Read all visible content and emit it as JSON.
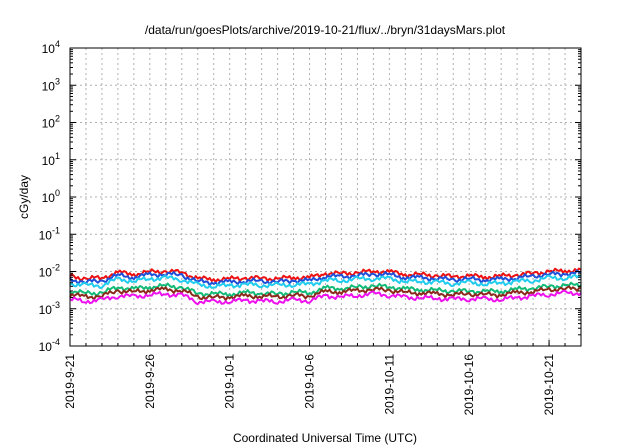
{
  "chart_data": {
    "type": "line",
    "title": "/data/run/goesPlots/archive/2019-10-21/flux/../bryn/31daysMars.plot",
    "xlabel": "Coordinated Universal Time (UTC)",
    "ylabel": "cGy/day",
    "y_scale": "log",
    "ylim": [
      0.0001,
      10000
    ],
    "xlim": [
      "2019-09-21",
      "2019-10-23"
    ],
    "grid": true,
    "x_ticks": [
      "2019-9-21",
      "2019-9-26",
      "2019-10-1",
      "2019-10-6",
      "2019-10-11",
      "2019-10-16",
      "2019-10-21"
    ],
    "y_ticks": [
      {
        "mantissa": "10",
        "exp": "-4",
        "value": 0.0001
      },
      {
        "mantissa": "10",
        "exp": "-3",
        "value": 0.001
      },
      {
        "mantissa": "10",
        "exp": "-2",
        "value": 0.01
      },
      {
        "mantissa": "10",
        "exp": "-1",
        "value": 0.1
      },
      {
        "mantissa": "10",
        "exp": "0",
        "value": 1
      },
      {
        "mantissa": "10",
        "exp": "1",
        "value": 10
      },
      {
        "mantissa": "10",
        "exp": "2",
        "value": 100
      },
      {
        "mantissa": "10",
        "exp": "3",
        "value": 1000
      },
      {
        "mantissa": "10",
        "exp": "4",
        "value": 10000
      }
    ],
    "x": [
      "2019-09-21",
      "2019-09-22",
      "2019-09-23",
      "2019-09-24",
      "2019-09-25",
      "2019-09-26",
      "2019-09-27",
      "2019-09-28",
      "2019-09-29",
      "2019-09-30",
      "2019-10-01",
      "2019-10-02",
      "2019-10-03",
      "2019-10-04",
      "2019-10-05",
      "2019-10-06",
      "2019-10-07",
      "2019-10-08",
      "2019-10-09",
      "2019-10-10",
      "2019-10-11",
      "2019-10-12",
      "2019-10-13",
      "2019-10-14",
      "2019-10-15",
      "2019-10-16",
      "2019-10-17",
      "2019-10-18",
      "2019-10-19",
      "2019-10-20",
      "2019-10-21",
      "2019-10-22",
      "2019-10-23"
    ],
    "series": [
      {
        "color": "#ee1111",
        "values": [
          0.0075,
          0.0065,
          0.0068,
          0.0095,
          0.0085,
          0.0098,
          0.0102,
          0.0096,
          0.0065,
          0.0062,
          0.0063,
          0.0068,
          0.0066,
          0.0064,
          0.007,
          0.0068,
          0.009,
          0.0088,
          0.0094,
          0.0102,
          0.0098,
          0.0084,
          0.0082,
          0.0078,
          0.0074,
          0.0076,
          0.0072,
          0.0075,
          0.0082,
          0.009,
          0.01,
          0.0105,
          0.011
        ]
      },
      {
        "color": "#1f4fd8",
        "values": [
          0.006,
          0.0053,
          0.0056,
          0.0079,
          0.0071,
          0.0082,
          0.0086,
          0.008,
          0.0054,
          0.0051,
          0.0052,
          0.0056,
          0.0055,
          0.0053,
          0.0058,
          0.0056,
          0.0075,
          0.0073,
          0.0078,
          0.0086,
          0.0082,
          0.007,
          0.0068,
          0.0065,
          0.0061,
          0.0063,
          0.006,
          0.0062,
          0.0068,
          0.0075,
          0.0084,
          0.0088,
          0.0092
        ]
      },
      {
        "color": "#22ccee",
        "values": [
          0.0048,
          0.0042,
          0.0044,
          0.0062,
          0.0056,
          0.0064,
          0.0067,
          0.0063,
          0.0043,
          0.0041,
          0.0042,
          0.0045,
          0.0044,
          0.0042,
          0.0046,
          0.0045,
          0.0059,
          0.0058,
          0.0062,
          0.0067,
          0.0064,
          0.0055,
          0.0054,
          0.0051,
          0.0049,
          0.005,
          0.0047,
          0.0049,
          0.0054,
          0.0059,
          0.0066,
          0.0069,
          0.0072
        ]
      },
      {
        "color": "#11bb77",
        "values": [
          0.003,
          0.0026,
          0.0027,
          0.0038,
          0.0034,
          0.0039,
          0.0041,
          0.0038,
          0.0026,
          0.0025,
          0.0025,
          0.0027,
          0.0026,
          0.0025,
          0.0028,
          0.0027,
          0.0036,
          0.0035,
          0.0038,
          0.0041,
          0.0039,
          0.0034,
          0.0033,
          0.0031,
          0.003,
          0.003,
          0.0029,
          0.003,
          0.0033,
          0.0036,
          0.004,
          0.0042,
          0.0044
        ]
      },
      {
        "color": "#8b2a1a",
        "values": [
          0.0024,
          0.0021,
          0.0022,
          0.0031,
          0.0028,
          0.0032,
          0.0033,
          0.0031,
          0.0021,
          0.002,
          0.0021,
          0.0022,
          0.0022,
          0.0021,
          0.0023,
          0.0022,
          0.0029,
          0.0029,
          0.0031,
          0.0033,
          0.0032,
          0.0027,
          0.0027,
          0.0025,
          0.0024,
          0.0025,
          0.0024,
          0.0024,
          0.0027,
          0.0029,
          0.0033,
          0.0034,
          0.0036
        ]
      },
      {
        "color": "#ee11ee",
        "values": [
          0.0018,
          0.0016,
          0.0017,
          0.0023,
          0.0021,
          0.0024,
          0.0025,
          0.0023,
          0.0016,
          0.0015,
          0.0016,
          0.0017,
          0.0016,
          0.0016,
          0.0017,
          0.0017,
          0.0022,
          0.0021,
          0.0023,
          0.0025,
          0.0024,
          0.002,
          0.002,
          0.0019,
          0.0018,
          0.0019,
          0.0018,
          0.0018,
          0.002,
          0.0022,
          0.0025,
          0.0026,
          0.0027
        ]
      }
    ]
  }
}
